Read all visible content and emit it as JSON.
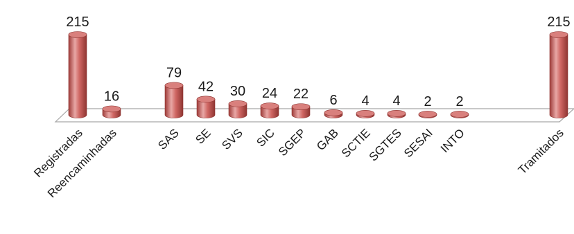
{
  "chart_data": {
    "type": "bar",
    "style": "3d-cylinder",
    "categories": [
      "Registradas",
      "Reencaminhadas",
      "SAS",
      "SE",
      "SVS",
      "SIC",
      "SGEP",
      "GAB",
      "SCTIE",
      "SGTES",
      "SESAI",
      "INTO",
      "Tramitados"
    ],
    "values": [
      215,
      16,
      79,
      42,
      30,
      24,
      22,
      6,
      4,
      4,
      2,
      2,
      215
    ],
    "value_labels": [
      "215",
      "16",
      "79",
      "42",
      "30",
      "24",
      "22",
      "6",
      "4",
      "4",
      "2",
      "2",
      "215"
    ],
    "title": "",
    "xlabel": "",
    "ylabel": "",
    "ylim": [
      0,
      215
    ],
    "grid": false,
    "legend": "none",
    "bar_color": "#c0504d",
    "bar_highlight": "#e8a7a5",
    "floor_color": "#a6a6a6"
  }
}
